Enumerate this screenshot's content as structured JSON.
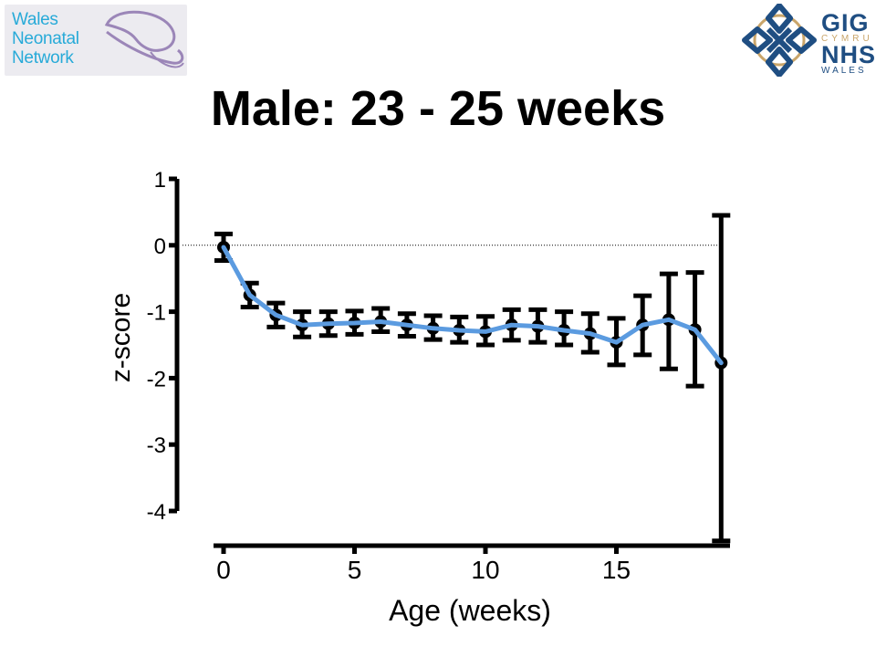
{
  "logos": {
    "left": {
      "lines": [
        "Wales",
        "Neonatal",
        "Network"
      ],
      "text_color": "#27aad8",
      "swirl_color": "#9b86b8",
      "background": "#ecebf0"
    },
    "right": {
      "gig": "GIG",
      "cymru": "CYMRU",
      "nhs": "NHS",
      "wales": "WALES",
      "primary_color": "#1f4e82",
      "accent_color": "#c9a56a"
    }
  },
  "chart_data": {
    "type": "line",
    "title": "Male: 23 - 25 weeks",
    "xlabel": "Age (weeks)",
    "ylabel": "z-score",
    "xlim": [
      -0.5,
      19.5
    ],
    "ylim": [
      -4,
      1
    ],
    "xticks": [
      0,
      5,
      10,
      15
    ],
    "yticks": [
      1,
      0,
      -1,
      -2,
      -3,
      -4
    ],
    "reference_line": {
      "y": 0,
      "style": "dotted"
    },
    "series": [
      {
        "line_color": "#5b9be0",
        "marker_color": "#000000",
        "points": [
          {
            "x": 0,
            "y": -0.03,
            "lower": -0.23,
            "upper": 0.17
          },
          {
            "x": 1,
            "y": -0.75,
            "lower": -0.93,
            "upper": -0.57
          },
          {
            "x": 2,
            "y": -1.05,
            "lower": -1.23,
            "upper": -0.87
          },
          {
            "x": 3,
            "y": -1.2,
            "lower": -1.38,
            "upper": -1.0
          },
          {
            "x": 4,
            "y": -1.18,
            "lower": -1.36,
            "upper": -1.0
          },
          {
            "x": 5,
            "y": -1.17,
            "lower": -1.34,
            "upper": -0.99
          },
          {
            "x": 6,
            "y": -1.15,
            "lower": -1.3,
            "upper": -0.95
          },
          {
            "x": 7,
            "y": -1.2,
            "lower": -1.37,
            "upper": -1.03
          },
          {
            "x": 8,
            "y": -1.25,
            "lower": -1.42,
            "upper": -1.06
          },
          {
            "x": 9,
            "y": -1.28,
            "lower": -1.46,
            "upper": -1.08
          },
          {
            "x": 10,
            "y": -1.3,
            "lower": -1.5,
            "upper": -1.07
          },
          {
            "x": 11,
            "y": -1.2,
            "lower": -1.43,
            "upper": -0.97
          },
          {
            "x": 12,
            "y": -1.22,
            "lower": -1.46,
            "upper": -0.97
          },
          {
            "x": 13,
            "y": -1.28,
            "lower": -1.5,
            "upper": -1.0
          },
          {
            "x": 14,
            "y": -1.33,
            "lower": -1.61,
            "upper": -1.03
          },
          {
            "x": 15,
            "y": -1.46,
            "lower": -1.8,
            "upper": -1.1
          },
          {
            "x": 16,
            "y": -1.2,
            "lower": -1.65,
            "upper": -0.76
          },
          {
            "x": 17,
            "y": -1.12,
            "lower": -1.86,
            "upper": -0.43
          },
          {
            "x": 18,
            "y": -1.27,
            "lower": -2.12,
            "upper": -0.41
          },
          {
            "x": 19,
            "y": -1.77,
            "lower": -4.45,
            "upper": 0.45
          }
        ]
      }
    ]
  }
}
